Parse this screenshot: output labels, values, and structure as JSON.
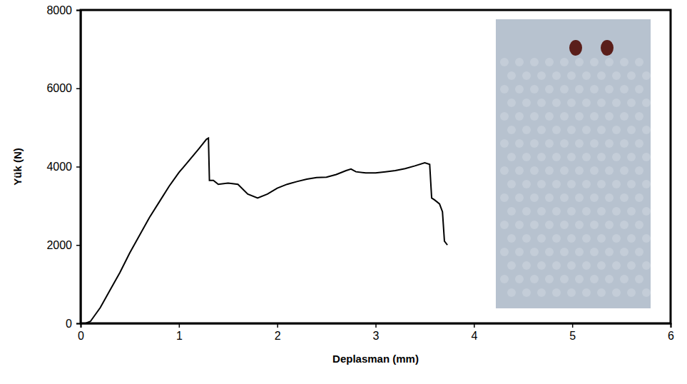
{
  "chart_data": {
    "type": "line",
    "x_label": "Deplasman (mm)",
    "y_label": "Yük (N)",
    "color": "#000000",
    "xlim": [
      0,
      6
    ],
    "xticks": [
      0,
      1,
      2,
      3,
      4,
      5,
      6
    ],
    "ylim": [
      0,
      8000
    ],
    "yticks": [
      0,
      2000,
      4000,
      6000,
      8000
    ],
    "grid": false,
    "x": [
      0,
      0.05,
      0.1,
      0.2,
      0.3,
      0.4,
      0.5,
      0.6,
      0.7,
      0.8,
      0.9,
      1.0,
      1.1,
      1.2,
      1.28,
      1.3,
      1.31,
      1.35,
      1.4,
      1.5,
      1.6,
      1.7,
      1.8,
      1.9,
      2.0,
      2.1,
      2.2,
      2.3,
      2.4,
      2.5,
      2.6,
      2.7,
      2.75,
      2.8,
      2.9,
      3.0,
      3.1,
      3.2,
      3.3,
      3.4,
      3.5,
      3.55,
      3.57,
      3.6,
      3.65,
      3.68,
      3.7,
      3.73
    ],
    "values": [
      0,
      0,
      50,
      400,
      850,
      1300,
      1800,
      2250,
      2700,
      3100,
      3500,
      3850,
      4150,
      4450,
      4700,
      4730,
      3650,
      3650,
      3550,
      3580,
      3550,
      3300,
      3200,
      3300,
      3450,
      3550,
      3620,
      3680,
      3720,
      3730,
      3800,
      3900,
      3940,
      3870,
      3840,
      3840,
      3870,
      3900,
      3950,
      4020,
      4100,
      4060,
      3200,
      3150,
      3050,
      2850,
      2100,
      2000
    ]
  }
}
